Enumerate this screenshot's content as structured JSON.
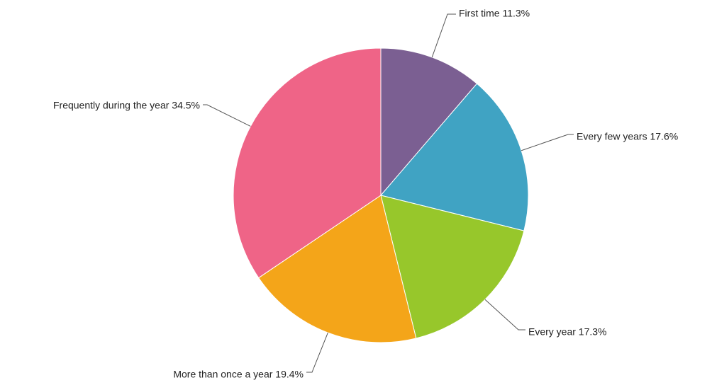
{
  "chart_data": {
    "type": "pie",
    "title": "",
    "series": [
      {
        "name": "First time",
        "value": 11.3,
        "label": "First time 11.3%",
        "color": "#7B5F92"
      },
      {
        "name": "Every few years",
        "value": 17.6,
        "label": "Every few years 17.6%",
        "color": "#40A3C3"
      },
      {
        "name": "Every year",
        "value": 17.3,
        "label": "Every year 17.3%",
        "color": "#97C72B"
      },
      {
        "name": "More than once a year",
        "value": 19.4,
        "label": "More than once a year 19.4%",
        "color": "#F4A519"
      },
      {
        "name": "Frequently during the year",
        "value": 34.5,
        "label": "Frequently during the year 34.5%",
        "color": "#EF6487"
      }
    ],
    "start_angle": "12 o'clock",
    "direction": "clockwise",
    "legend": "none",
    "labels": "outside with leader lines"
  }
}
